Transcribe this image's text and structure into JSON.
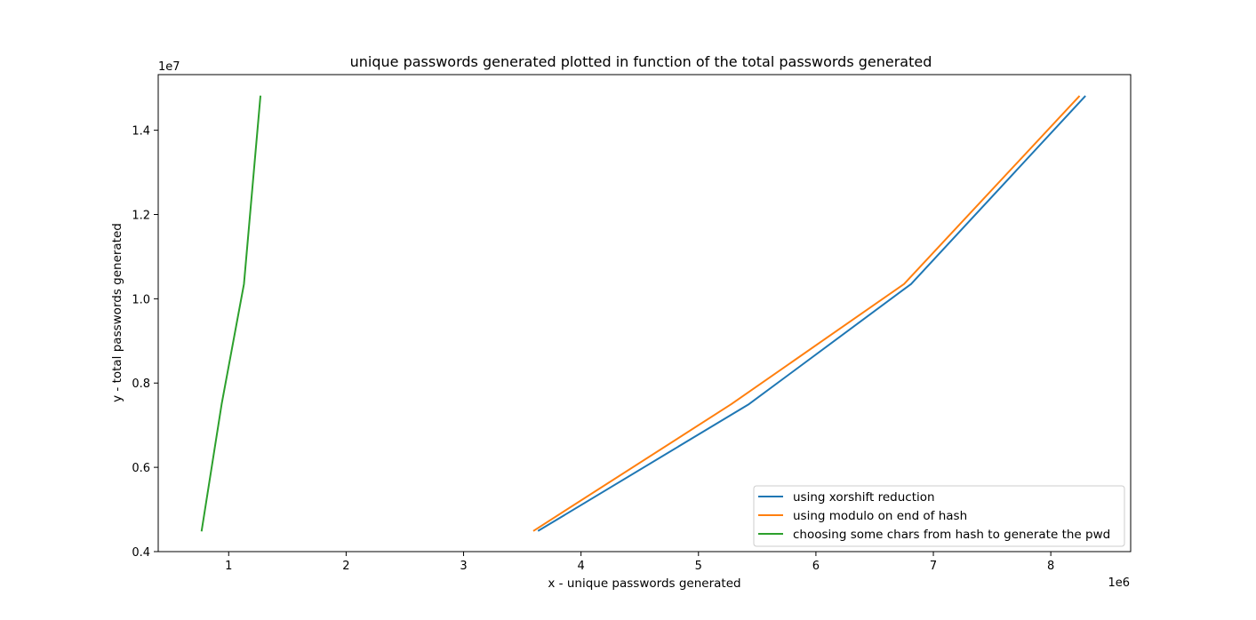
{
  "chart_data": {
    "type": "line",
    "title": "unique passwords generated plotted in function of the total passwords generated",
    "xlabel": "x - unique passwords generated",
    "ylabel": "y - total passwords generated",
    "x_offset_label": "1e6",
    "y_offset_label": "1e7",
    "xlim": [
      0.4,
      8.68
    ],
    "ylim": [
      0.4,
      1.532
    ],
    "x_scale": 1000000,
    "y_scale": 10000000,
    "x_ticks": [
      1,
      2,
      3,
      4,
      5,
      6,
      7,
      8
    ],
    "x_tick_labels": [
      "1",
      "2",
      "3",
      "4",
      "5",
      "6",
      "7",
      "8"
    ],
    "y_ticks": [
      0.4,
      0.6,
      0.8,
      1.0,
      1.2,
      1.4
    ],
    "y_tick_labels": [
      "0.4",
      "0.6",
      "0.8",
      "1.0",
      "1.2",
      "1.4"
    ],
    "grid": false,
    "legend_position": "lower-right",
    "series": [
      {
        "name": "using xorshift reduction",
        "color": "#1f77b4",
        "x": [
          3.64,
          5.43,
          6.81,
          8.29
        ],
        "y": [
          0.45,
          0.75,
          1.035,
          1.48
        ]
      },
      {
        "name": "using modulo on end of hash",
        "color": "#ff7f0e",
        "x": [
          3.6,
          5.28,
          6.75,
          8.24
        ],
        "y": [
          0.45,
          0.75,
          1.035,
          1.48
        ]
      },
      {
        "name": "choosing some chars from hash to generate the pwd",
        "color": "#2ca02c",
        "x": [
          0.77,
          0.94,
          1.13,
          1.27
        ],
        "y": [
          0.45,
          0.75,
          1.035,
          1.48
        ]
      }
    ]
  }
}
